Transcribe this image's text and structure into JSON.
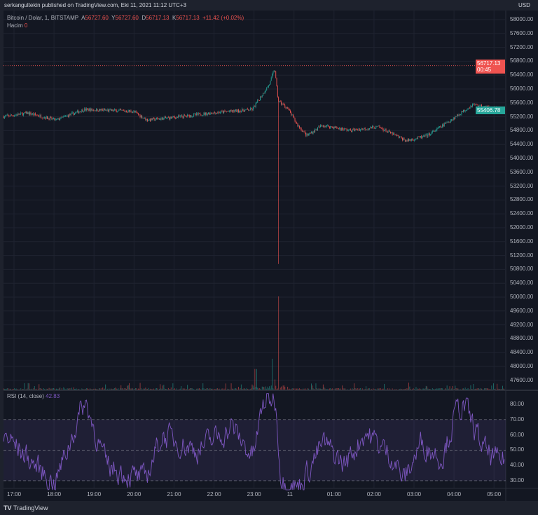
{
  "header": {
    "publisher": "serkangultekin published on TradingView.com, Eki 11, 2021 11:12 UTC+3"
  },
  "legend": {
    "symbol": "Bitcoin / Dolar, 1, BITSTAMP",
    "open_label": "A",
    "open": "56727.60",
    "high_label": "Y",
    "high": "56727.60",
    "low_label": "D",
    "low": "56717.13",
    "close_label": "K",
    "close": "56717.13",
    "change": "+11.42 (+0.02%)"
  },
  "volume": {
    "label": "Hacim",
    "value": "0"
  },
  "rsi": {
    "label": "RSI (14, close)",
    "value": "42.83",
    "ticks": [
      "80.00",
      "70.00",
      "60.00",
      "50.00",
      "40.00",
      "30.00"
    ]
  },
  "price_axis": {
    "currency": "USD",
    "ticks": [
      "58000.00",
      "57600.00",
      "57200.00",
      "56800.00",
      "56400.00",
      "56000.00",
      "55600.00",
      "55200.00",
      "54800.00",
      "54400.00",
      "54000.00",
      "53600.00",
      "53200.00",
      "52800.00",
      "52400.00",
      "52000.00",
      "51600.00",
      "51200.00",
      "50800.00",
      "50400.00",
      "50000.00",
      "49600.00",
      "49200.00",
      "48800.00",
      "48400.00",
      "48000.00",
      "47600.00"
    ]
  },
  "last_price": {
    "value": "56717.13",
    "countdown": "00:45",
    "color": "#ef5350"
  },
  "marker_price": {
    "value": "55406.78",
    "color": "#26a69a"
  },
  "time_axis": [
    "17:00",
    "18:00",
    "19:00",
    "20:00",
    "21:00",
    "22:00",
    "23:00",
    "11",
    "01:00",
    "02:00",
    "03:00",
    "04:00",
    "05:00"
  ],
  "footer": {
    "logo": "TV",
    "brand": "TradingView"
  },
  "colors": {
    "up": "#26a69a",
    "down": "#ef5350",
    "rsi": "#7e57c2"
  }
}
